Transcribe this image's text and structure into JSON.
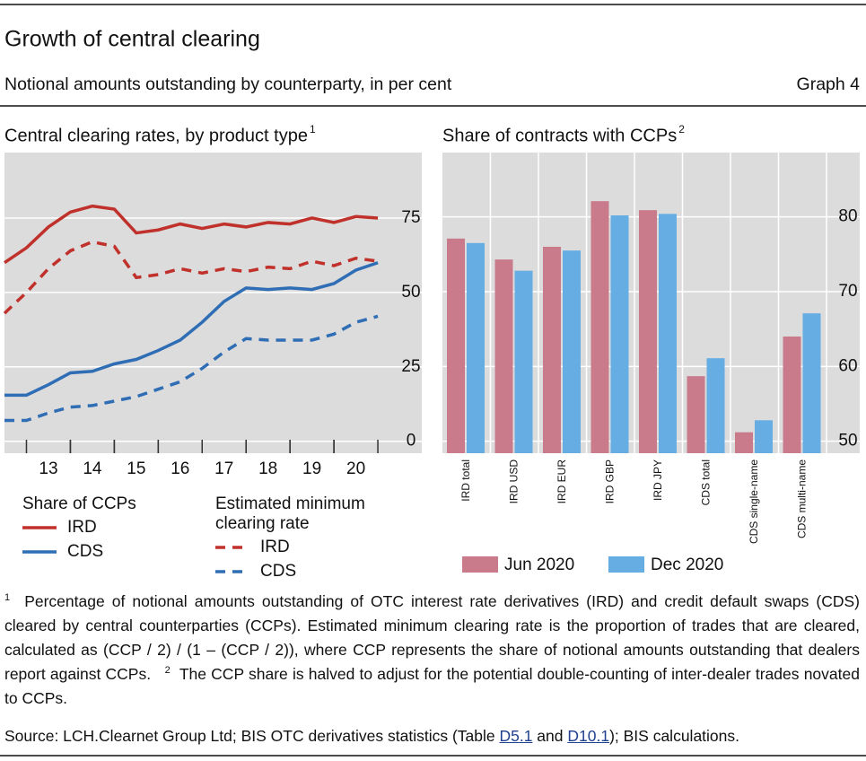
{
  "header": {
    "title": "Growth of central clearing",
    "subtitle": "Notional amounts outstanding by counterparty, in per cent",
    "graph_label": "Graph 4"
  },
  "chart_data": [
    {
      "type": "line",
      "title": "Central clearing rates, by product type",
      "title_note": "1",
      "x": [
        2012.5,
        2013.0,
        2013.5,
        2014.0,
        2014.5,
        2015.0,
        2015.5,
        2016.0,
        2016.5,
        2017.0,
        2017.5,
        2018.0,
        2018.5,
        2019.0,
        2019.5,
        2020.0,
        2020.5,
        2021.0
      ],
      "xlim": [
        2012.5,
        2022.0
      ],
      "xticks": [
        {
          "value": 2013.5,
          "label": "13"
        },
        {
          "value": 2014.5,
          "label": "14"
        },
        {
          "value": 2015.5,
          "label": "15"
        },
        {
          "value": 2016.5,
          "label": "16"
        },
        {
          "value": 2017.5,
          "label": "17"
        },
        {
          "value": 2018.5,
          "label": "18"
        },
        {
          "value": 2019.5,
          "label": "19"
        },
        {
          "value": 2020.5,
          "label": "20"
        }
      ],
      "ylim": [
        -4,
        97
      ],
      "yticks": [
        0,
        25,
        50,
        75
      ],
      "grid": true,
      "legend_groups": [
        "Share of CCPs",
        "Estimated minimum clearing rate"
      ],
      "series": [
        {
          "name": "IRD",
          "color": "#c0312b",
          "dash": false,
          "values": [
            60,
            65,
            72,
            77,
            79,
            78,
            70,
            71,
            73,
            71.5,
            73,
            72,
            73.5,
            73,
            75,
            73.5,
            75.5,
            75
          ]
        },
        {
          "name": "CDS",
          "color": "#2f6db5",
          "dash": false,
          "values": [
            15.5,
            15.5,
            19,
            23,
            23.5,
            26,
            27.5,
            30.5,
            34,
            40,
            47,
            51.5,
            51,
            51.5,
            51,
            53,
            57.5,
            60
          ]
        },
        {
          "name": "IRD",
          "color": "#c0312b",
          "dash": true,
          "values": [
            43,
            50,
            58,
            64,
            67,
            65.5,
            55,
            56,
            58,
            56.5,
            58,
            57,
            58.5,
            58,
            60.5,
            59,
            61.5,
            60.5
          ]
        },
        {
          "name": "CDS",
          "color": "#2f6db5",
          "dash": true,
          "values": [
            7,
            7,
            9.5,
            11.5,
            12,
            13.5,
            15,
            17.5,
            20,
            24.5,
            30,
            34.5,
            34,
            34,
            34,
            36,
            40,
            42
          ]
        }
      ]
    },
    {
      "type": "bar",
      "title": "Share of contracts with CCPs",
      "title_note": "2",
      "categories": [
        "IRD total",
        "IRD USD",
        "IRD EUR",
        "IRD GBP",
        "IRD JPY",
        "CDS total",
        "CDS single-name",
        "CDS multi-name"
      ],
      "ylim": [
        48.4,
        88.6
      ],
      "yticks": [
        50,
        60,
        70,
        80
      ],
      "grid": true,
      "series": [
        {
          "name": "Jun 2020",
          "color": "#c97b8c",
          "values": [
            77.1,
            74.3,
            76,
            82.1,
            80.9,
            58.7,
            51.2,
            64
          ]
        },
        {
          "name": "Dec 2020",
          "color": "#65ade3",
          "values": [
            76.5,
            72.8,
            75.5,
            80.2,
            80.4,
            61.1,
            52.8,
            67.1
          ]
        }
      ]
    }
  ],
  "footnotes": [
    {
      "marker": "1",
      "text": "Percentage of notional amounts outstanding of OTC interest rate derivatives (IRD) and credit default swaps (CDS) cleared by central counterparties (CCPs). Estimated minimum clearing rate is the proportion of trades that are cleared, calculated as (CCP / 2) / (1 – (CCP / 2)), where CCP represents the share of notional amounts outstanding that dealers report against CCPs."
    },
    {
      "marker": "2",
      "text": "The CCP share is halved to adjust for the potential double-counting of inter-dealer trades novated to CCPs."
    }
  ],
  "source": {
    "before": "Source: LCH.Clearnet Group Ltd; BIS OTC derivatives statistics (Table ",
    "link1": "D5.1",
    "between": " and ",
    "link2": "D10.1",
    "after": "); BIS calculations."
  }
}
